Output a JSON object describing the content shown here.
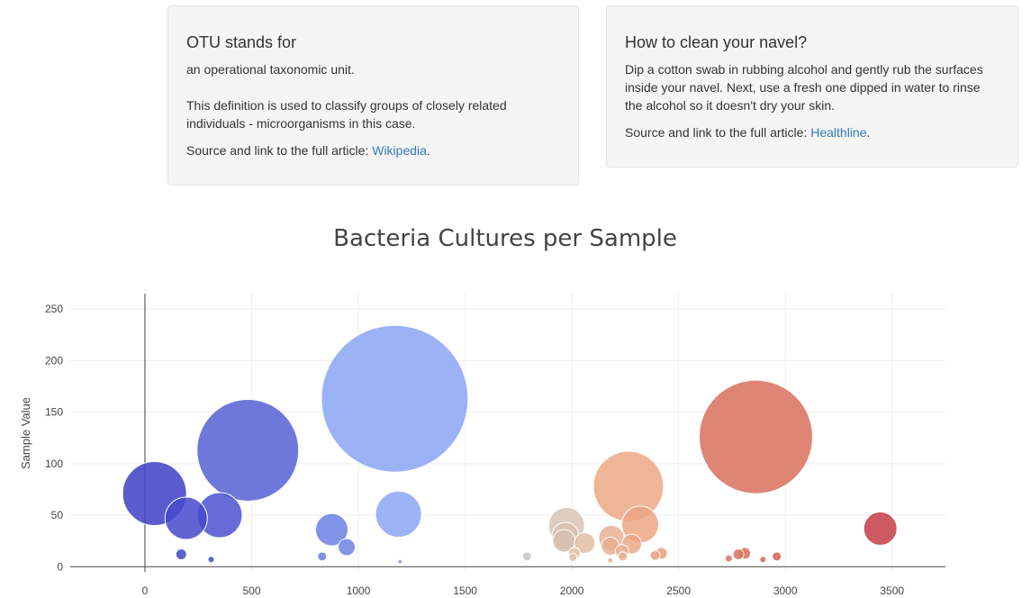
{
  "card1": {
    "title": "OTU stands for",
    "line1": "an operational taxonomic unit.",
    "line2": "This definition is used to classify groups of closely related individuals - microorganisms in this case.",
    "source_prefix": "Source and link to the full article: ",
    "link_text": "Wikipedia",
    "source_suffix": "."
  },
  "card2": {
    "title": "How to clean your navel?",
    "line1": "Dip a cotton swab in rubbing alcohol and gently rub the surfaces inside your navel. Next, use a fresh one dipped in water to rinse the alcohol so it doesn't dry your skin.",
    "source_prefix": "Source and link to the full article: ",
    "link_text": "Healthline",
    "source_suffix": "."
  },
  "chart_data": {
    "type": "scatter",
    "title": "Bacteria Cultures per Sample",
    "xlabel": "",
    "ylabel": "Sample Value",
    "xlim": [
      -350,
      3750
    ],
    "ylim": [
      -5,
      265
    ],
    "xticks": [
      0,
      500,
      1000,
      1500,
      2000,
      2500,
      3000,
      3500
    ],
    "yticks": [
      0,
      50,
      100,
      150,
      200,
      250
    ],
    "grid": true,
    "legend": "none",
    "points": [
      {
        "x": 45,
        "y": 71,
        "color": "#3d3fc4"
      },
      {
        "x": 193,
        "y": 47,
        "color": "#4649cc"
      },
      {
        "x": 350,
        "y": 50,
        "color": "#4a52d0"
      },
      {
        "x": 482,
        "y": 113,
        "color": "#5560d4"
      },
      {
        "x": 170,
        "y": 12,
        "color": "#3f45c6"
      },
      {
        "x": 310,
        "y": 7,
        "color": "#4348c8"
      },
      {
        "x": 875,
        "y": 36,
        "color": "#6b80e2"
      },
      {
        "x": 945,
        "y": 19,
        "color": "#6f84e4"
      },
      {
        "x": 830,
        "y": 10,
        "color": "#6a7ee0"
      },
      {
        "x": 1170,
        "y": 163,
        "color": "#8aa4f4"
      },
      {
        "x": 1188,
        "y": 51,
        "color": "#8ba6f4"
      },
      {
        "x": 1195,
        "y": 5,
        "color": "#8aa2f2"
      },
      {
        "x": 1790,
        "y": 10,
        "color": "#c8c6c4"
      },
      {
        "x": 1975,
        "y": 40,
        "color": "#d8c4b4"
      },
      {
        "x": 1970,
        "y": 30,
        "color": "#d9c2b0"
      },
      {
        "x": 1963,
        "y": 25,
        "color": "#d6c0ae"
      },
      {
        "x": 2012,
        "y": 13,
        "color": "#ddbfa8"
      },
      {
        "x": 2060,
        "y": 23,
        "color": "#e2bea4"
      },
      {
        "x": 2005,
        "y": 9,
        "color": "#dfbea6"
      },
      {
        "x": 2185,
        "y": 28,
        "color": "#e8b294"
      },
      {
        "x": 2180,
        "y": 20,
        "color": "#e8b092"
      },
      {
        "x": 2235,
        "y": 15,
        "color": "#eaad8e"
      },
      {
        "x": 2238,
        "y": 10,
        "color": "#eaab8c"
      },
      {
        "x": 2265,
        "y": 78,
        "color": "#eba985"
      },
      {
        "x": 2320,
        "y": 41,
        "color": "#eca684"
      },
      {
        "x": 2280,
        "y": 22,
        "color": "#eba886"
      },
      {
        "x": 2390,
        "y": 11,
        "color": "#eba080"
      },
      {
        "x": 2420,
        "y": 13,
        "color": "#ea9c7c"
      },
      {
        "x": 2180,
        "y": 6,
        "color": "#e8ae90"
      },
      {
        "x": 2735,
        "y": 8,
        "color": "#dc7660"
      },
      {
        "x": 2780,
        "y": 12,
        "color": "#d8705c"
      },
      {
        "x": 2810,
        "y": 13,
        "color": "#d66c58"
      },
      {
        "x": 2862,
        "y": 126,
        "color": "#d8705e"
      },
      {
        "x": 2895,
        "y": 7,
        "color": "#d46652"
      },
      {
        "x": 2960,
        "y": 10,
        "color": "#d06050"
      },
      {
        "x": 3445,
        "y": 37,
        "color": "#c43c48"
      }
    ]
  }
}
